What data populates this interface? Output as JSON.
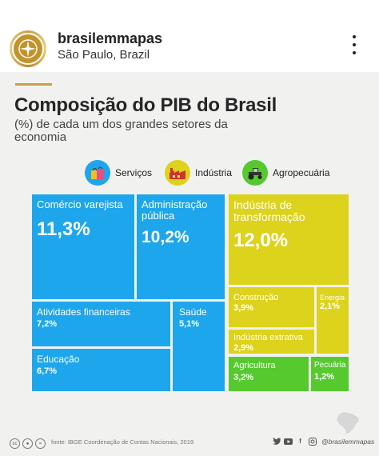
{
  "post": {
    "account_name": "brasilemmapas",
    "location": "São Paulo, Brazil"
  },
  "infographic": {
    "title": "Composição do PIB do Brasil",
    "subtitle": "(%) de cada um dos grandes setores da economia",
    "legend": [
      {
        "label": "Serviços",
        "color": "#1ea6ec",
        "icon": "shopping-bags-icon"
      },
      {
        "label": "Indústria",
        "color": "#ddd21c",
        "icon": "factory-icon"
      },
      {
        "label": "Agropecuária",
        "color": "#55c92e",
        "icon": "tractor-icon"
      }
    ],
    "tiles": {
      "comercio": {
        "name": "Comércio varejista",
        "value": "11,3%"
      },
      "administracao": {
        "name": "Administração pública",
        "value": "10,2%"
      },
      "financeiras": {
        "name": "Atividades financeiras",
        "value": "7,2%"
      },
      "saude": {
        "name": "Saúde",
        "value": "5,1%"
      },
      "educacao": {
        "name": "Educação",
        "value": "6,7%"
      },
      "transformacao": {
        "name": "Indústria de transformação",
        "value": "12,0%"
      },
      "construcao": {
        "name": "Construção",
        "value": "3,9%"
      },
      "energia": {
        "name": "Energia",
        "value": "2,1%"
      },
      "extrativa": {
        "name": "Indústria extrativa",
        "value": "2,9%"
      },
      "agricultura": {
        "name": "Agricultura",
        "value": "3,2%"
      },
      "pecuaria": {
        "name": "Pecuária",
        "value": "1,2%"
      }
    },
    "source": "fonte: IBGE Coordenação de Contas Nacionais, 2019",
    "handle": "@brasilemmapas"
  },
  "colors": {
    "servicos": "#1ea6ec",
    "industria": "#ddd21c",
    "agropecuaria": "#55c92e",
    "accent": "#c7a24a"
  }
}
